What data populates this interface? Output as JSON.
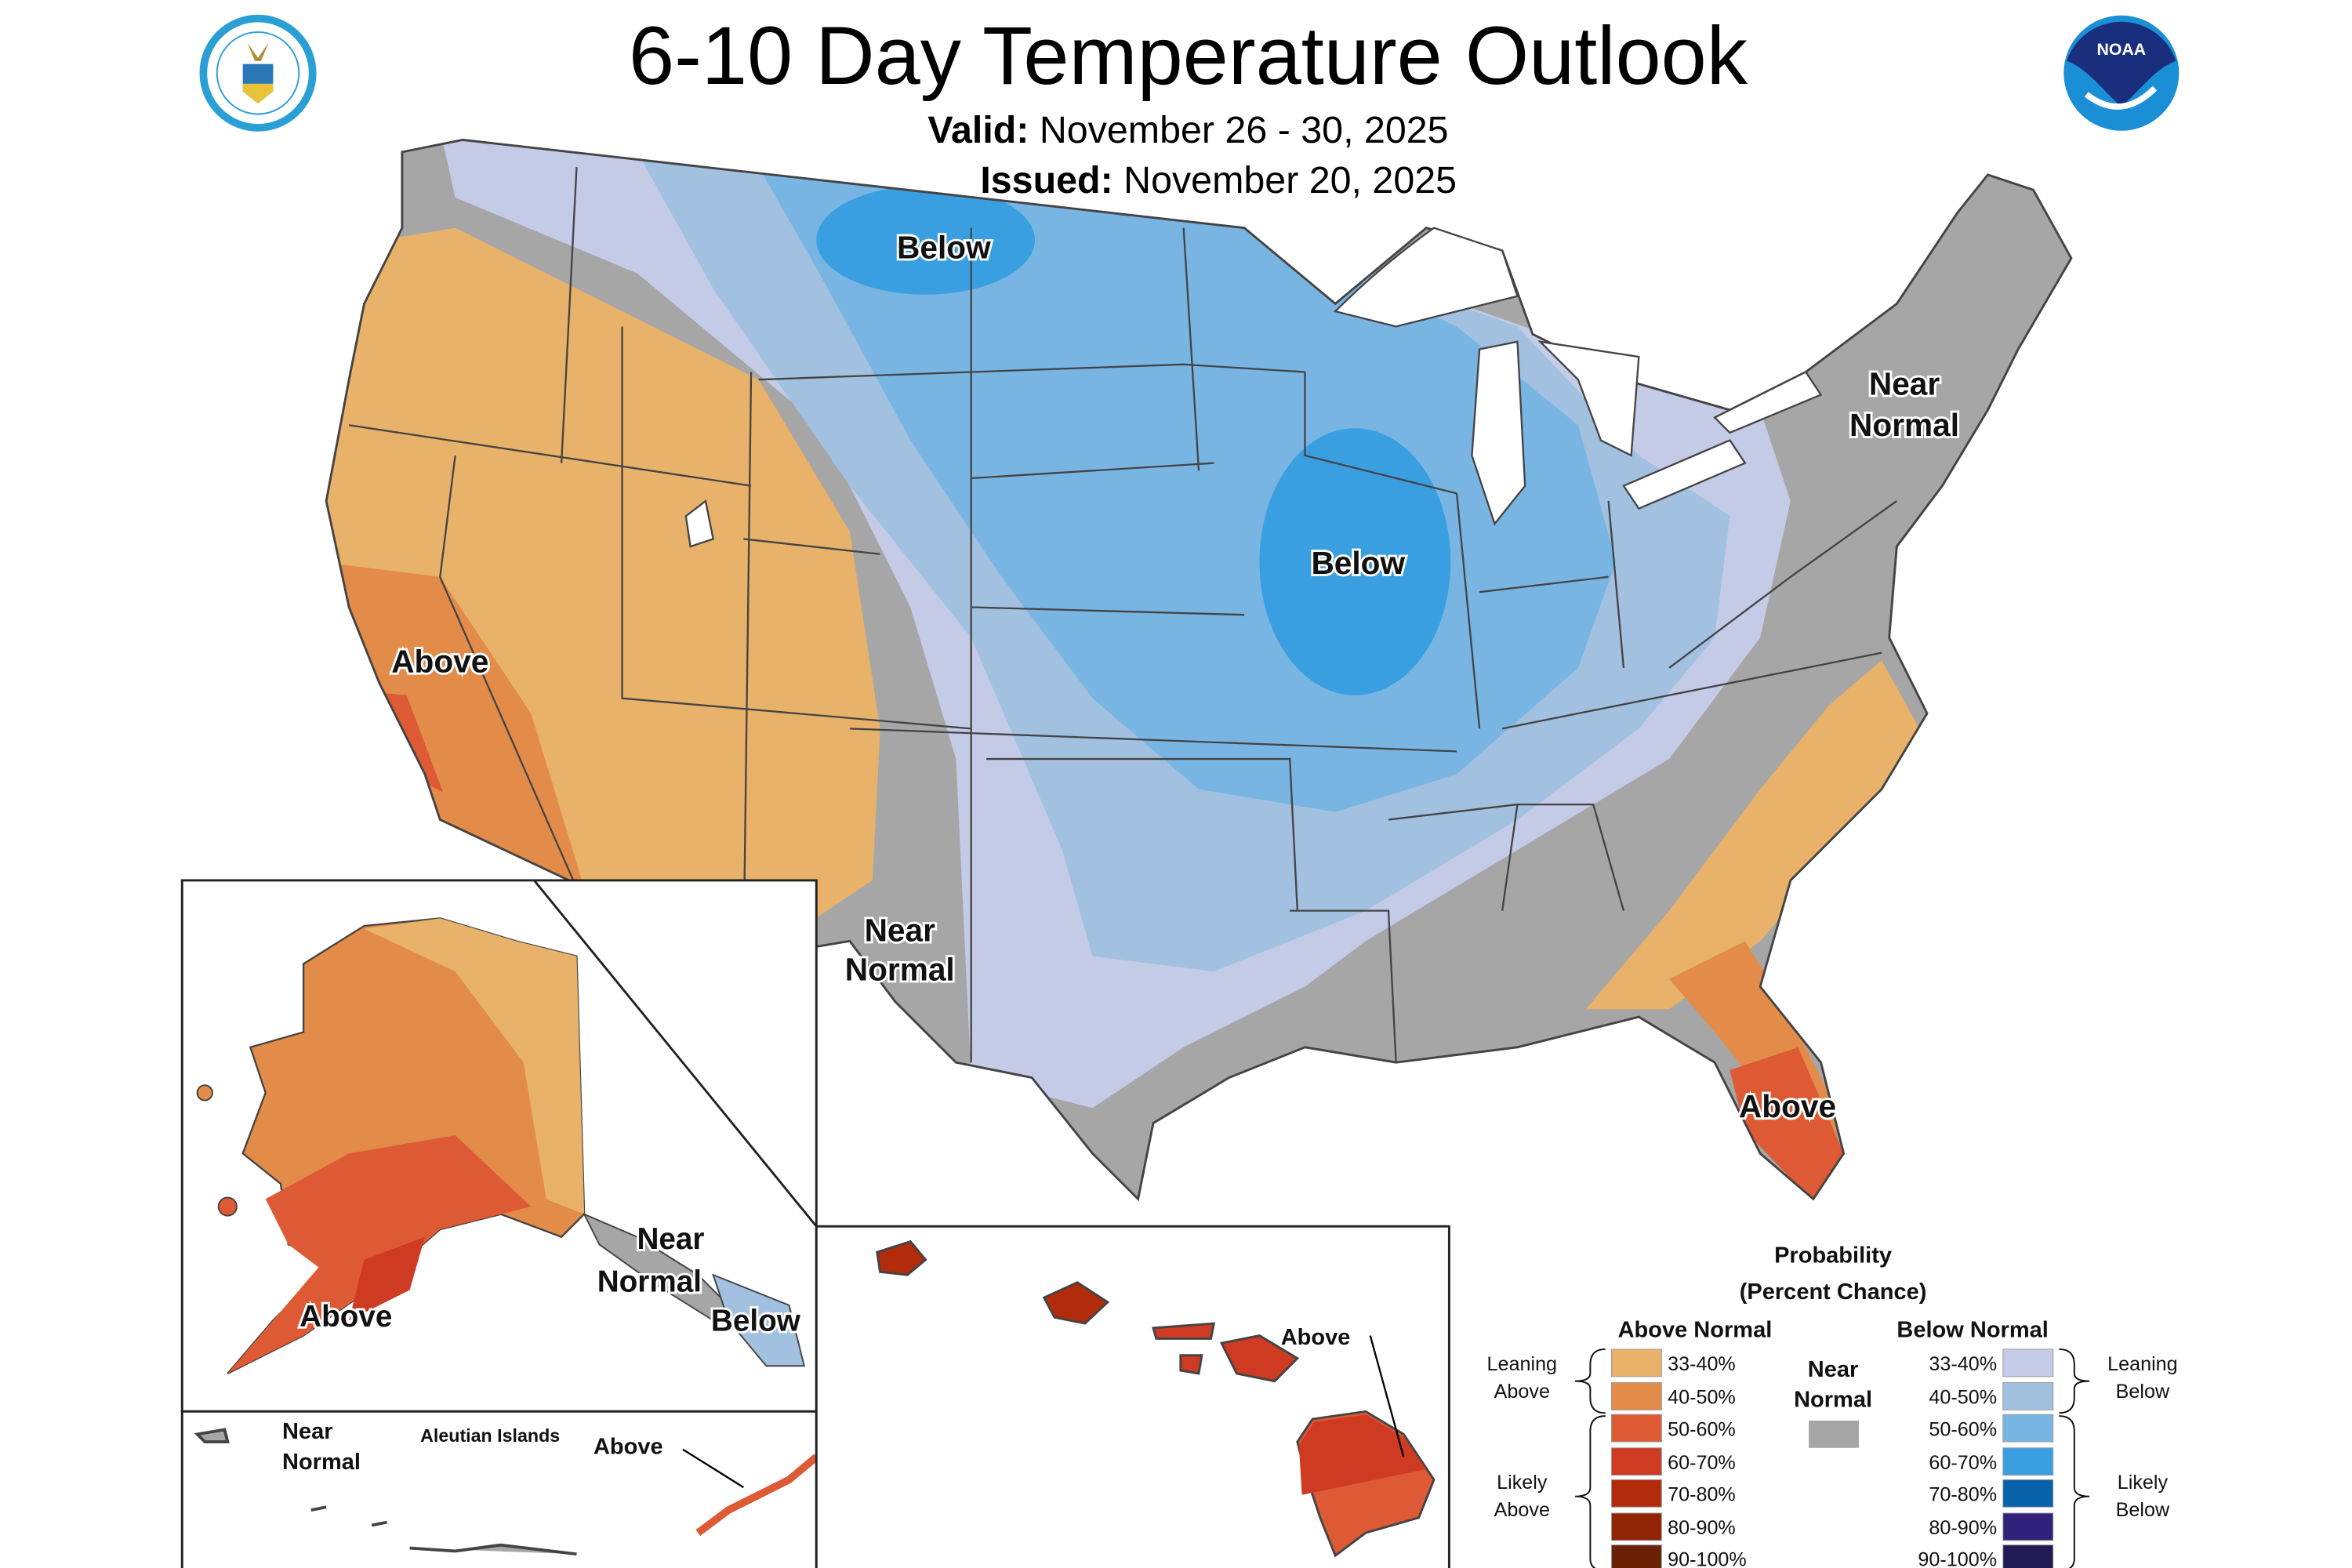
{
  "header": {
    "title": "6-10 Day Temperature Outlook",
    "valid_label": "Valid:",
    "valid_value": "November 26 - 30, 2025",
    "issued_label": "Issued:",
    "issued_value": "November 20, 2025",
    "left_logo": "Department of Commerce seal",
    "right_logo": "NOAA",
    "right_logo_text": "NOAA"
  },
  "map_labels": {
    "conus_below_north": "Below",
    "conus_below_midwest": "Below",
    "conus_above_west": "Above",
    "conus_near_south": [
      "Near",
      "Normal"
    ],
    "conus_near_northeast": [
      "Near",
      "Normal"
    ],
    "conus_above_florida": "Above",
    "alaska_above": "Above",
    "alaska_near": [
      "Near",
      "Normal"
    ],
    "alaska_below": "Below",
    "aleutian_title": "Aleutian Islands",
    "aleutian_near": [
      "Near",
      "Normal"
    ],
    "aleutian_above": "Above",
    "hawaii_above": "Above"
  },
  "legend": {
    "title": "Probability",
    "subtitle": "(Percent Chance)",
    "above_header": "Above Normal",
    "below_header": "Below Normal",
    "near_label": [
      "Near",
      "Normal"
    ],
    "near_color": "#a6a6a6",
    "leaning_above": [
      "Leaning",
      "Above"
    ],
    "likely_above": [
      "Likely",
      "Above"
    ],
    "leaning_below": [
      "Leaning",
      "Below"
    ],
    "likely_below": [
      "Likely",
      "Below"
    ],
    "above": [
      {
        "range": "33-40%",
        "color": "#e8b26a"
      },
      {
        "range": "40-50%",
        "color": "#e38c4a"
      },
      {
        "range": "50-60%",
        "color": "#dd5a35"
      },
      {
        "range": "60-70%",
        "color": "#cf3a22"
      },
      {
        "range": "70-80%",
        "color": "#b22b0b"
      },
      {
        "range": "80-90%",
        "color": "#922406"
      },
      {
        "range": "90-100%",
        "color": "#6b2104"
      }
    ],
    "below": [
      {
        "range": "33-40%",
        "color": "#c3cbe6"
      },
      {
        "range": "40-50%",
        "color": "#a2c0e0"
      },
      {
        "range": "50-60%",
        "color": "#79b5e3"
      },
      {
        "range": "60-70%",
        "color": "#3a9fe0"
      },
      {
        "range": "70-80%",
        "color": "#0762aa"
      },
      {
        "range": "80-90%",
        "color": "#30217a"
      },
      {
        "range": "90-100%",
        "color": "#221a55"
      }
    ]
  }
}
